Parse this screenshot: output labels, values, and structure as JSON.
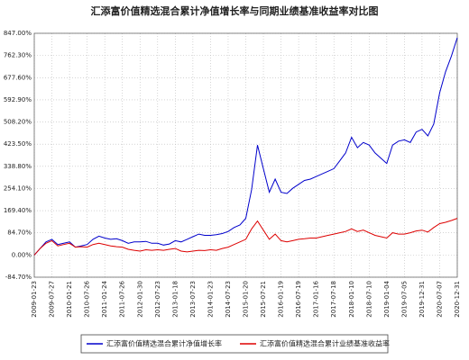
{
  "chart_data": {
    "type": "line",
    "title": "汇添富价值精选混合累计净值增长率与同期业绩基准收益率对比图",
    "categories": [
      "2009-01-23",
      null,
      null,
      "2009-07-27",
      null,
      null,
      "2010-01-21",
      null,
      null,
      "2010-07-26",
      null,
      null,
      "2011-01-24",
      null,
      null,
      "2011-07-26",
      null,
      null,
      "2012-01-30",
      null,
      null,
      "2012-07-23",
      null,
      null,
      "2013-01-18",
      null,
      null,
      "2013-07-23",
      null,
      null,
      "2014-01-23",
      null,
      null,
      "2014-07-23",
      null,
      null,
      "2015-01-20",
      null,
      null,
      "2015-07-21",
      null,
      null,
      "2016-01-19",
      null,
      null,
      "2016-07-19",
      null,
      null,
      "2017-01-16",
      null,
      null,
      "2017-07-18",
      null,
      null,
      "2018-01-10",
      null,
      null,
      "2018-07-10",
      null,
      null,
      "2019-01-04",
      null,
      null,
      "2019-07-05",
      null,
      null,
      "2019-12-31",
      null,
      null,
      "2020-07-07",
      null,
      null,
      "2020-12-31"
    ],
    "series": [
      {
        "name": "汇添富价值精选混合累计净值增长率",
        "color": "#0000cc",
        "values": [
          0,
          25,
          50,
          60,
          40,
          45,
          50,
          30,
          35,
          40,
          60,
          72,
          65,
          60,
          62,
          55,
          45,
          50,
          50,
          52,
          45,
          45,
          38,
          42,
          55,
          50,
          60,
          70,
          80,
          75,
          75,
          78,
          82,
          90,
          105,
          115,
          140,
          250,
          420,
          330,
          240,
          290,
          240,
          235,
          255,
          270,
          285,
          290,
          300,
          310,
          320,
          330,
          360,
          390,
          450,
          410,
          430,
          420,
          390,
          370,
          350,
          420,
          435,
          440,
          430,
          470,
          480,
          455,
          500,
          620,
          700,
          760,
          830
        ]
      },
      {
        "name": "汇添富价值精选混合累计业绩基准收益率",
        "color": "#dd0000",
        "values": [
          0,
          25,
          45,
          55,
          35,
          40,
          45,
          30,
          32,
          30,
          40,
          45,
          40,
          35,
          32,
          30,
          22,
          18,
          15,
          20,
          18,
          20,
          18,
          22,
          25,
          15,
          12,
          15,
          18,
          17,
          20,
          18,
          25,
          30,
          40,
          50,
          60,
          100,
          130,
          95,
          60,
          80,
          55,
          50,
          55,
          60,
          62,
          65,
          65,
          70,
          75,
          80,
          85,
          90,
          100,
          90,
          95,
          85,
          75,
          70,
          65,
          85,
          80,
          80,
          85,
          92,
          95,
          88,
          105,
          120,
          125,
          132,
          140
        ]
      }
    ],
    "ylim": [
      -84.7,
      847
    ],
    "yticks": [
      {
        "value": -84.7,
        "label": "-84.70%"
      },
      {
        "value": 0,
        "label": "0.00%"
      },
      {
        "value": 84.7,
        "label": "84.70%"
      },
      {
        "value": 169.4,
        "label": "169.40%"
      },
      {
        "value": 254.1,
        "label": "254.10%"
      },
      {
        "value": 338.8,
        "label": "338.80%"
      },
      {
        "value": 423.5,
        "label": "423.50%"
      },
      {
        "value": 508.2,
        "label": "508.20%"
      },
      {
        "value": 592.9,
        "label": "592.90%"
      },
      {
        "value": 677.6,
        "label": "677.60%"
      },
      {
        "value": 762.3,
        "label": "762.30%"
      },
      {
        "value": 847,
        "label": "847.00%"
      }
    ],
    "grid": true
  }
}
